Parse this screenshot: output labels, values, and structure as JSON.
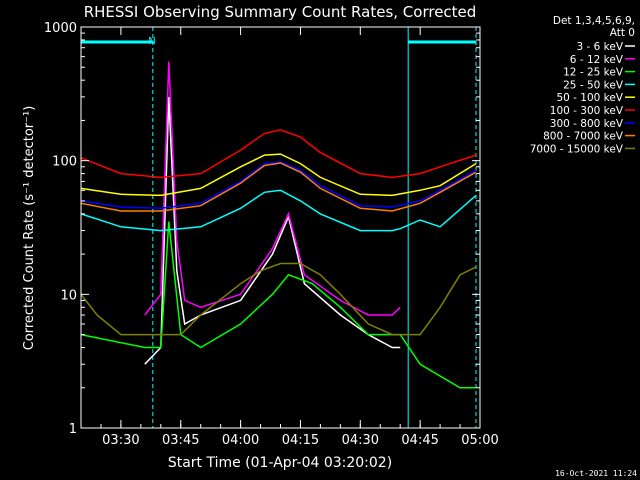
{
  "chart_data": {
    "type": "line",
    "title": "RHESSI Observing Summary Count Rates, Corrected",
    "xlabel": "Start Time (01-Apr-04 03:20:02)",
    "ylabel": "Corrected Count Rate (s⁻¹ detector⁻¹)",
    "y_scale": "log",
    "ylim": [
      1,
      1000
    ],
    "xlim": [
      "03:20",
      "05:00"
    ],
    "x_ticks": [
      "03:30",
      "03:45",
      "04:00",
      "04:15",
      "04:30",
      "04:45",
      "05:00"
    ],
    "y_ticks": [
      "1",
      "10",
      "100",
      "1000"
    ],
    "legend_header": [
      "Det 1,3,4,5,6,9,",
      "Att 0"
    ],
    "legend_position": "right",
    "flag_label": "N",
    "timestamp": "16-Oct-2021 11:24",
    "night_intervals": [
      [
        "03:20",
        "03:38"
      ],
      [
        "04:42",
        "04:59"
      ]
    ],
    "series": [
      {
        "name": "3 - 6 keV",
        "color": "#ffffff",
        "x": [
          "03:36",
          "03:40",
          "03:42",
          "03:44",
          "03:46",
          "03:50",
          "04:00",
          "04:08",
          "04:12",
          "04:16",
          "04:25",
          "04:32",
          "04:38",
          "04:40"
        ],
        "values": [
          3,
          4,
          300,
          15,
          6,
          7,
          9,
          20,
          38,
          12,
          7,
          5,
          4,
          4
        ]
      },
      {
        "name": "6 - 12 keV",
        "color": "#ff00ff",
        "x": [
          "03:36",
          "03:40",
          "03:42",
          "03:44",
          "03:46",
          "03:50",
          "04:00",
          "04:08",
          "04:12",
          "04:16",
          "04:25",
          "04:32",
          "04:38",
          "04:40"
        ],
        "values": [
          7,
          10,
          550,
          25,
          9,
          8,
          10,
          22,
          40,
          14,
          9,
          7,
          7,
          8
        ]
      },
      {
        "name": "12 - 25 keV",
        "color": "#00ff00",
        "x": [
          "03:20",
          "03:36",
          "03:40",
          "03:42",
          "03:45",
          "03:50",
          "04:00",
          "04:08",
          "04:12",
          "04:18",
          "04:25",
          "04:32",
          "04:38",
          "04:40",
          "04:45",
          "04:55",
          "04:59"
        ],
        "values": [
          5,
          4,
          4,
          35,
          5,
          4,
          6,
          10,
          14,
          12,
          8,
          5,
          5,
          5,
          3,
          2,
          2
        ]
      },
      {
        "name": "25 - 50 keV",
        "color": "#00ffff",
        "x": [
          "03:20",
          "03:30",
          "03:40",
          "03:50",
          "04:00",
          "04:06",
          "04:10",
          "04:15",
          "04:20",
          "04:30",
          "04:38",
          "04:40",
          "04:45",
          "04:50",
          "04:59"
        ],
        "values": [
          40,
          32,
          30,
          32,
          44,
          58,
          60,
          50,
          40,
          30,
          30,
          31,
          36,
          32,
          55
        ]
      },
      {
        "name": "50 - 100 keV",
        "color": "#ffff00",
        "x": [
          "03:20",
          "03:30",
          "03:40",
          "03:50",
          "04:00",
          "04:06",
          "04:10",
          "04:15",
          "04:20",
          "04:30",
          "04:38",
          "04:45",
          "04:50",
          "04:59"
        ],
        "values": [
          62,
          56,
          55,
          62,
          90,
          110,
          112,
          95,
          75,
          56,
          55,
          60,
          65,
          95
        ]
      },
      {
        "name": "100 - 300 keV",
        "color": "#ff0000",
        "x": [
          "03:20",
          "03:30",
          "03:40",
          "03:50",
          "04:00",
          "04:06",
          "04:10",
          "04:15",
          "04:20",
          "04:30",
          "04:38",
          "04:45",
          "04:50",
          "04:59"
        ],
        "values": [
          105,
          80,
          75,
          80,
          120,
          160,
          170,
          150,
          115,
          80,
          75,
          80,
          90,
          110
        ]
      },
      {
        "name": "300 - 800 keV",
        "color": "#0000ff",
        "x": [
          "03:20",
          "03:30",
          "03:40",
          "03:50",
          "04:00",
          "04:06",
          "04:10",
          "04:15",
          "04:20",
          "04:30",
          "04:38",
          "04:45",
          "04:50",
          "04:59"
        ],
        "values": [
          50,
          45,
          44,
          48,
          70,
          95,
          98,
          85,
          65,
          46,
          45,
          50,
          60,
          85
        ]
      },
      {
        "name": "800 - 7000 keV",
        "color": "#ff8000",
        "x": [
          "03:20",
          "03:30",
          "03:40",
          "03:50",
          "04:00",
          "04:06",
          "04:10",
          "04:15",
          "04:20",
          "04:30",
          "04:38",
          "04:45",
          "04:50",
          "04:59"
        ],
        "values": [
          48,
          42,
          42,
          46,
          68,
          92,
          96,
          82,
          62,
          44,
          42,
          48,
          58,
          82
        ]
      },
      {
        "name": "7000 - 15000 keV",
        "color": "#808000",
        "x": [
          "03:20",
          "03:24",
          "03:30",
          "03:36",
          "03:40",
          "03:45",
          "03:50",
          "04:00",
          "04:05",
          "04:10",
          "04:15",
          "04:20",
          "04:25",
          "04:32",
          "04:38",
          "04:45",
          "04:50",
          "04:55",
          "04:59"
        ],
        "values": [
          10,
          7,
          5,
          5,
          5,
          5,
          7,
          12,
          15,
          17,
          17,
          14,
          10,
          6,
          5,
          5,
          8,
          14,
          16
        ]
      }
    ]
  }
}
